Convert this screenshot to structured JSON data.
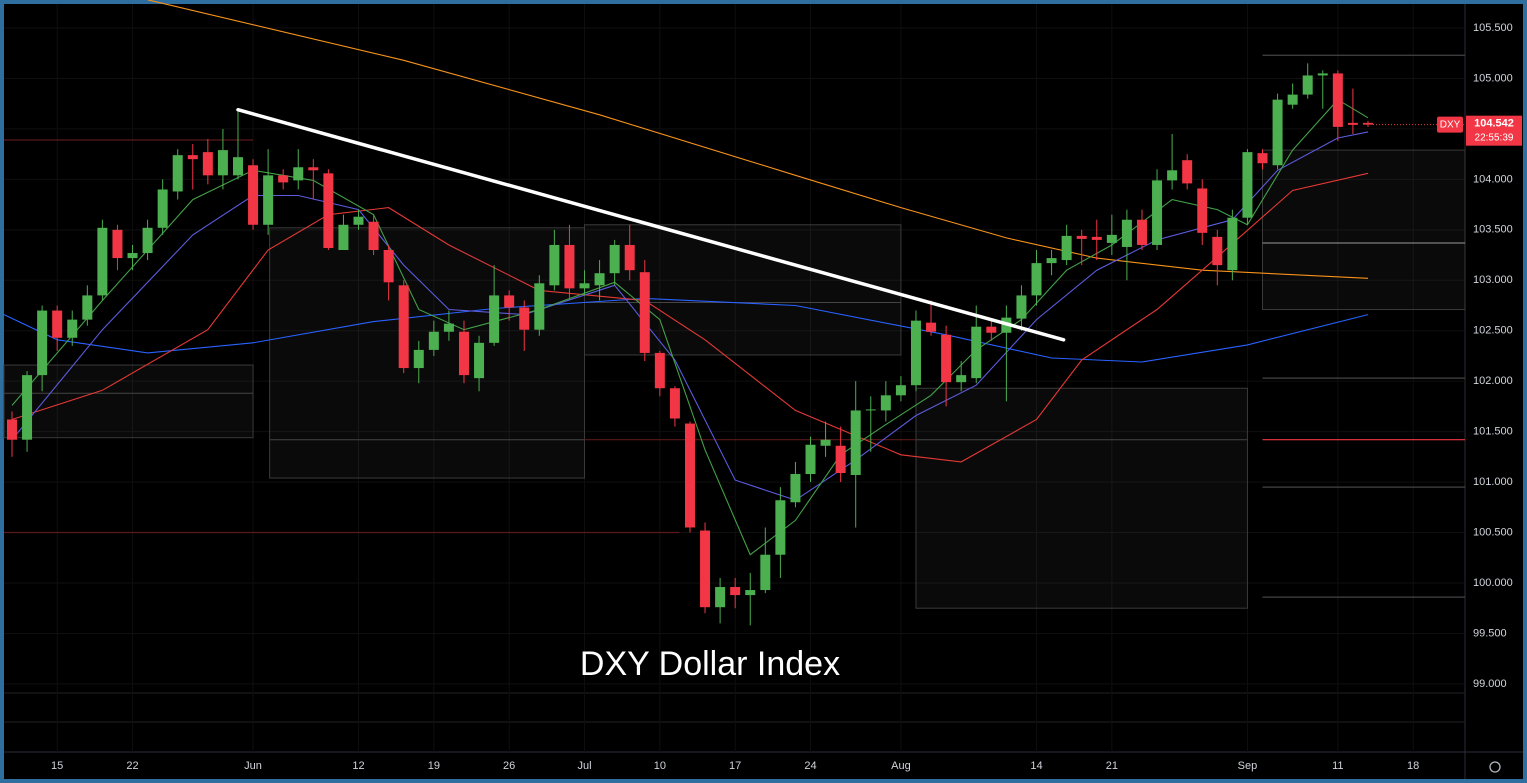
{
  "chart_data": {
    "type": "candlestick",
    "title": "DXY Dollar Index",
    "symbol": "DXY",
    "last_price": 104.542,
    "countdown": "22:55:39",
    "up_color": "#4caf50",
    "down_color": "#f23645",
    "grid": true,
    "xlim": [
      -0.53,
      96.44
    ],
    "xticks": [
      {
        "value": 3,
        "label": "15"
      },
      {
        "value": 8,
        "label": "22"
      },
      {
        "value": 16,
        "label": "Jun"
      },
      {
        "value": 23,
        "label": "12"
      },
      {
        "value": 28,
        "label": "19"
      },
      {
        "value": 33,
        "label": "26"
      },
      {
        "value": 38,
        "label": "Jul"
      },
      {
        "value": 43,
        "label": "10"
      },
      {
        "value": 48,
        "label": "17"
      },
      {
        "value": 53,
        "label": "24"
      },
      {
        "value": 59,
        "label": "Aug"
      },
      {
        "value": 68,
        "label": "14"
      },
      {
        "value": 73,
        "label": "21"
      },
      {
        "value": 82,
        "label": "Sep"
      },
      {
        "value": 88,
        "label": "11"
      },
      {
        "value": 93,
        "label": "18"
      }
    ],
    "ylim": [
      98.325,
      105.738
    ],
    "yticks": [
      {
        "value": 99.0,
        "label": "99.000"
      },
      {
        "value": 99.5,
        "label": "99.500"
      },
      {
        "value": 100.0,
        "label": "100.000"
      },
      {
        "value": 100.5,
        "label": "100.500"
      },
      {
        "value": 101.0,
        "label": "101.000"
      },
      {
        "value": 101.5,
        "label": "101.500"
      },
      {
        "value": 102.0,
        "label": "102.000"
      },
      {
        "value": 102.5,
        "label": "102.500"
      },
      {
        "value": 103.0,
        "label": "103.000"
      },
      {
        "value": 103.5,
        "label": "103.500"
      },
      {
        "value": 104.0,
        "label": "104.000"
      },
      {
        "value": 104.5,
        "label": "104.500"
      },
      {
        "value": 105.0,
        "label": "105.000"
      },
      {
        "value": 105.5,
        "label": "105.500"
      }
    ],
    "open": [
      101.62,
      101.42,
      102.06,
      102.7,
      102.43,
      102.61,
      102.85,
      103.5,
      103.22,
      103.27,
      103.52,
      103.88,
      104.24,
      104.27,
      104.04,
      104.04,
      104.14,
      103.55,
      104.04,
      103.99,
      104.12,
      104.06,
      103.3,
      103.55,
      103.58,
      103.3,
      102.95,
      102.13,
      102.31,
      102.49,
      102.49,
      102.03,
      102.38,
      102.85,
      102.73,
      102.51,
      102.95,
      103.35,
      102.92,
      102.95,
      103.07,
      103.35,
      103.08,
      102.28,
      101.93,
      101.58,
      100.52,
      99.76,
      99.96,
      99.88,
      99.93,
      100.28,
      100.8,
      101.08,
      101.36,
      101.36,
      101.07,
      101.71,
      101.71,
      101.86,
      101.96,
      102.58,
      102.46,
      101.99,
      102.03,
      102.54,
      102.48,
      102.62,
      102.85,
      103.17,
      103.2,
      103.44,
      103.43,
      103.37,
      103.33,
      103.6,
      103.35,
      103.99,
      104.19,
      103.91,
      103.43,
      103.1,
      103.62,
      104.26,
      104.14,
      104.74,
      104.84,
      105.03,
      105.05,
      104.56,
      104.56
    ],
    "high": [
      101.7,
      102.1,
      102.75,
      102.75,
      102.7,
      102.95,
      103.6,
      103.55,
      103.35,
      103.6,
      104.0,
      104.3,
      104.35,
      104.4,
      104.5,
      104.69,
      104.2,
      104.3,
      104.1,
      104.3,
      104.2,
      104.1,
      103.65,
      103.7,
      103.65,
      103.35,
      103.0,
      102.4,
      102.6,
      102.7,
      102.6,
      102.45,
      103.15,
      102.9,
      102.8,
      103.05,
      103.5,
      103.55,
      103.1,
      103.2,
      103.4,
      103.55,
      103.2,
      102.3,
      101.95,
      101.6,
      100.6,
      100.05,
      100.05,
      100.1,
      100.55,
      100.95,
      101.2,
      101.45,
      101.6,
      101.55,
      102.0,
      101.85,
      102.0,
      102.05,
      102.7,
      102.8,
      102.55,
      102.2,
      102.75,
      102.6,
      102.75,
      102.95,
      103.3,
      103.3,
      103.55,
      103.5,
      103.6,
      103.65,
      103.7,
      103.7,
      104.1,
      104.45,
      104.25,
      104.0,
      103.5,
      103.7,
      104.3,
      104.3,
      104.85,
      104.95,
      105.15,
      105.08,
      105.08,
      104.9,
      104.58
    ],
    "low": [
      101.25,
      101.3,
      101.9,
      102.3,
      102.35,
      102.55,
      102.8,
      103.1,
      103.1,
      103.2,
      103.45,
      103.8,
      103.9,
      103.95,
      103.9,
      104.0,
      103.5,
      103.45,
      103.9,
      103.9,
      103.8,
      103.3,
      103.3,
      103.5,
      103.25,
      102.8,
      102.08,
      101.98,
      102.25,
      102.4,
      101.98,
      101.9,
      102.35,
      102.6,
      102.3,
      102.45,
      102.9,
      102.8,
      102.85,
      102.8,
      102.95,
      103.0,
      102.2,
      101.85,
      101.55,
      100.5,
      99.7,
      99.6,
      99.75,
      99.58,
      99.9,
      100.05,
      100.75,
      101.0,
      101.25,
      101.0,
      100.55,
      101.3,
      101.6,
      101.8,
      101.9,
      102.45,
      101.75,
      101.9,
      101.98,
      102.4,
      101.8,
      102.5,
      102.75,
      103.05,
      103.15,
      103.15,
      103.2,
      103.25,
      103.0,
      103.3,
      103.3,
      103.9,
      103.9,
      103.35,
      102.95,
      103.0,
      103.55,
      104.1,
      104.1,
      104.7,
      104.8,
      104.7,
      104.38,
      104.45,
      104.52
    ],
    "close": [
      101.42,
      102.06,
      102.7,
      102.43,
      102.61,
      102.85,
      103.52,
      103.22,
      103.27,
      103.52,
      103.9,
      104.24,
      104.2,
      104.04,
      104.29,
      104.22,
      103.55,
      104.04,
      103.97,
      104.12,
      104.09,
      103.32,
      103.55,
      103.63,
      103.3,
      102.98,
      102.13,
      102.31,
      102.49,
      102.57,
      102.06,
      102.38,
      102.85,
      102.73,
      102.51,
      102.97,
      103.35,
      102.92,
      102.97,
      103.07,
      103.35,
      103.1,
      102.28,
      101.93,
      101.63,
      100.55,
      99.76,
      99.96,
      99.88,
      99.93,
      100.28,
      100.82,
      101.08,
      101.37,
      101.42,
      101.09,
      101.71,
      101.72,
      101.86,
      101.96,
      102.6,
      102.49,
      101.99,
      102.06,
      102.54,
      102.48,
      102.63,
      102.85,
      103.17,
      103.22,
      103.44,
      103.41,
      103.4,
      103.45,
      103.6,
      103.35,
      103.99,
      104.09,
      103.96,
      103.47,
      103.15,
      103.62,
      104.27,
      104.16,
      104.79,
      104.84,
      105.03,
      105.05,
      104.52,
      104.54,
      104.542
    ],
    "lines": [
      {
        "color": "#f7931a",
        "x": [
          9,
          26,
          39,
          52,
          59,
          66,
          72,
          79,
          90
        ],
        "values": [
          105.78,
          105.18,
          104.64,
          104.04,
          103.72,
          103.42,
          103.22,
          103.1,
          103.02
        ]
      },
      {
        "color": "#2962ff",
        "x": [
          -0.53,
          3,
          9,
          16,
          24,
          32,
          42,
          52,
          62,
          69,
          75,
          82,
          90
        ],
        "values": [
          102.66,
          102.41,
          102.28,
          102.38,
          102.59,
          102.72,
          102.82,
          102.75,
          102.46,
          102.23,
          102.19,
          102.36,
          102.66
        ]
      },
      {
        "color": "#e53935",
        "x": [
          0,
          6,
          13,
          17,
          21,
          25,
          29,
          35,
          42,
          46,
          52,
          59,
          63,
          68,
          71,
          76,
          79,
          85,
          90
        ],
        "values": [
          101.62,
          101.91,
          102.51,
          103.3,
          103.65,
          103.72,
          103.35,
          102.9,
          102.8,
          102.41,
          101.71,
          101.27,
          101.2,
          101.62,
          102.21,
          102.71,
          103.1,
          103.89,
          104.06
        ]
      },
      {
        "color": "#5c5ce0",
        "x": [
          0,
          6,
          12,
          16,
          19,
          23,
          26,
          29,
          34,
          40,
          44,
          48,
          52,
          56,
          60,
          64,
          68,
          72,
          76,
          81,
          84,
          88,
          90
        ],
        "values": [
          101.42,
          102.51,
          103.45,
          103.84,
          103.84,
          103.7,
          103.15,
          102.71,
          102.66,
          102.95,
          102.21,
          101.02,
          100.82,
          101.22,
          101.66,
          101.96,
          102.61,
          103.1,
          103.4,
          103.6,
          104.09,
          104.41,
          104.47
        ]
      },
      {
        "color": "#43a047",
        "x": [
          0,
          6,
          12,
          16,
          20,
          24,
          27,
          30,
          35,
          40,
          43,
          46,
          49,
          52,
          55,
          58,
          61,
          64,
          67,
          70,
          73,
          77,
          80,
          82,
          85,
          88,
          90
        ],
        "values": [
          101.76,
          102.8,
          103.8,
          104.09,
          103.99,
          103.65,
          102.71,
          102.51,
          102.71,
          102.98,
          102.61,
          101.32,
          100.28,
          100.62,
          101.27,
          101.57,
          101.86,
          102.31,
          102.61,
          103.1,
          103.35,
          103.8,
          103.7,
          103.55,
          104.29,
          104.79,
          104.61
        ]
      }
    ],
    "trendline": {
      "x": [
        15,
        69.8
      ],
      "values": [
        104.69,
        102.41
      ]
    },
    "zones": [
      {
        "x": [
          -0.53,
          16
        ],
        "range": [
          101.44,
          102.16
        ],
        "mid": 101.88
      },
      {
        "x": [
          17.1,
          38
        ],
        "range": [
          101.04,
          103.52
        ],
        "mid": 101.42
      },
      {
        "x": [
          38,
          59
        ],
        "range": [
          102.26,
          103.55
        ],
        "mid": 102.78
      },
      {
        "x": [
          60,
          82
        ],
        "range": [
          99.75,
          101.93
        ],
        "mid": 101.42
      },
      {
        "x": [
          83,
          96.44
        ],
        "range": [
          102.71,
          104.29
        ],
        "mid": 103.37
      }
    ],
    "levels": [
      {
        "value": 104.39,
        "color": "#5a1a1a",
        "x": [
          -0.53,
          16
        ]
      },
      {
        "value": 100.5,
        "color": "#5a1a1a",
        "x": [
          -0.53,
          44.3
        ]
      },
      {
        "value": 101.42,
        "color": "#5a1a1a",
        "x": [
          38,
          60
        ]
      },
      {
        "value": 101.42,
        "color": "#f23645",
        "x": [
          83,
          96.44
        ]
      },
      {
        "value": 105.23,
        "color": "#444444",
        "x": [
          83,
          96.44
        ]
      },
      {
        "value": 102.03,
        "color": "#444444",
        "x": [
          83,
          96.44
        ]
      },
      {
        "value": 100.95,
        "color": "#444444",
        "x": [
          83,
          96.44
        ]
      },
      {
        "value": 99.86,
        "color": "#444444",
        "x": [
          83,
          96.44
        ]
      }
    ]
  }
}
